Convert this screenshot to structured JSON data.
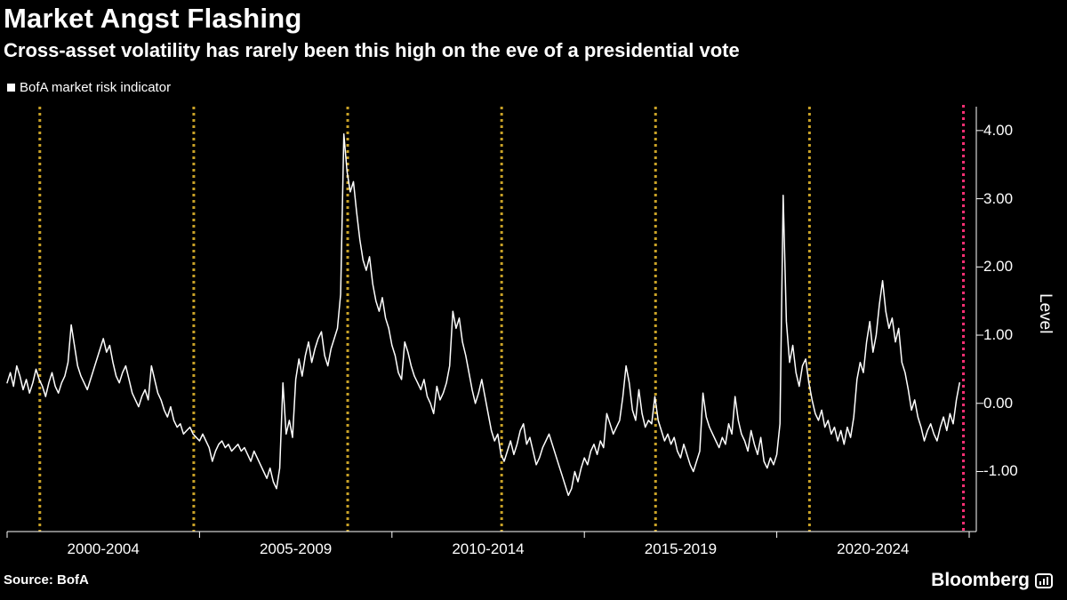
{
  "header": {
    "title": "Market Angst Flashing",
    "subtitle": "Cross-asset volatility has rarely been this high on the eve of a presidential vote"
  },
  "legend": {
    "label": "BofA market risk indicator",
    "marker_color": "#ffffff"
  },
  "footer": {
    "source": "Source: BofA",
    "brand": "Bloomberg"
  },
  "colors": {
    "background": "#000000",
    "text": "#ffffff",
    "axis": "#ffffff"
  },
  "chart_data": {
    "type": "line",
    "title": "Market Angst Flashing",
    "subtitle": "Cross-asset volatility has rarely been this high on the eve of a presidential vote",
    "ylabel": "Level",
    "xlim": [
      2000.0,
      2025.0
    ],
    "ylim": [
      -1.88,
      4.35
    ],
    "grid": false,
    "legend_position": "top-left",
    "y_ticks": [
      4.0,
      3.0,
      2.0,
      1.0,
      0.0,
      -1.0
    ],
    "y_tick_labels": [
      "4.00",
      "3.00",
      "2.00",
      "1.00",
      "0.00",
      "-1.00"
    ],
    "x_ticks": [
      2000,
      2005,
      2010,
      2015,
      2020,
      2025
    ],
    "x_period_labels": [
      "2000-2004",
      "2005-2009",
      "2010-2014",
      "2015-2019",
      "2020-2024"
    ],
    "event_lines": {
      "color": "#c9a227",
      "style": "dotted",
      "years": [
        2000.85,
        2004.85,
        2008.85,
        2012.85,
        2016.85,
        2020.85
      ]
    },
    "highlight_line": {
      "color": "#ff2e74",
      "style": "dotted",
      "year": 2024.85
    },
    "series": [
      {
        "name": "BofA market risk indicator",
        "color": "#ffffff",
        "x_start": 2000.0,
        "points_per_year": 12,
        "values": [
          0.3,
          0.45,
          0.25,
          0.55,
          0.4,
          0.2,
          0.35,
          0.15,
          0.3,
          0.5,
          0.35,
          0.25,
          0.1,
          0.3,
          0.45,
          0.25,
          0.15,
          0.3,
          0.4,
          0.6,
          1.15,
          0.85,
          0.55,
          0.4,
          0.3,
          0.2,
          0.35,
          0.5,
          0.65,
          0.8,
          0.95,
          0.75,
          0.85,
          0.6,
          0.4,
          0.3,
          0.45,
          0.55,
          0.35,
          0.15,
          0.05,
          -0.05,
          0.1,
          0.2,
          0.05,
          0.55,
          0.35,
          0.15,
          0.05,
          -0.1,
          -0.2,
          -0.05,
          -0.25,
          -0.35,
          -0.3,
          -0.45,
          -0.4,
          -0.35,
          -0.45,
          -0.5,
          -0.55,
          -0.45,
          -0.55,
          -0.65,
          -0.85,
          -0.7,
          -0.6,
          -0.55,
          -0.65,
          -0.6,
          -0.7,
          -0.65,
          -0.6,
          -0.7,
          -0.65,
          -0.75,
          -0.85,
          -0.7,
          -0.8,
          -0.9,
          -1.0,
          -1.1,
          -0.95,
          -1.15,
          -1.25,
          -0.95,
          0.3,
          -0.45,
          -0.25,
          -0.5,
          0.35,
          0.65,
          0.4,
          0.7,
          0.9,
          0.6,
          0.8,
          0.95,
          1.05,
          0.7,
          0.55,
          0.8,
          0.95,
          1.1,
          1.6,
          3.95,
          3.4,
          3.1,
          3.25,
          2.8,
          2.4,
          2.1,
          1.95,
          2.15,
          1.75,
          1.5,
          1.35,
          1.55,
          1.25,
          1.1,
          0.85,
          0.7,
          0.45,
          0.35,
          0.9,
          0.75,
          0.55,
          0.4,
          0.3,
          0.2,
          0.35,
          0.1,
          0.0,
          -0.15,
          0.25,
          0.05,
          0.15,
          0.3,
          0.55,
          1.35,
          1.1,
          1.25,
          0.9,
          0.7,
          0.45,
          0.2,
          0.0,
          0.15,
          0.35,
          0.1,
          -0.15,
          -0.4,
          -0.55,
          -0.45,
          -0.75,
          -0.85,
          -0.7,
          -0.55,
          -0.75,
          -0.6,
          -0.4,
          -0.3,
          -0.6,
          -0.5,
          -0.7,
          -0.9,
          -0.8,
          -0.65,
          -0.55,
          -0.45,
          -0.6,
          -0.75,
          -0.9,
          -1.05,
          -1.2,
          -1.35,
          -1.25,
          -1.0,
          -1.15,
          -0.95,
          -0.8,
          -0.9,
          -0.7,
          -0.6,
          -0.75,
          -0.55,
          -0.65,
          -0.15,
          -0.3,
          -0.45,
          -0.35,
          -0.25,
          0.1,
          0.55,
          0.3,
          -0.1,
          -0.25,
          0.2,
          -0.15,
          -0.35,
          -0.25,
          -0.3,
          0.1,
          -0.25,
          -0.4,
          -0.55,
          -0.45,
          -0.6,
          -0.5,
          -0.7,
          -0.8,
          -0.6,
          -0.75,
          -0.9,
          -1.0,
          -0.85,
          -0.7,
          0.15,
          -0.2,
          -0.35,
          -0.45,
          -0.55,
          -0.65,
          -0.5,
          -0.6,
          -0.3,
          -0.45,
          0.1,
          -0.25,
          -0.45,
          -0.55,
          -0.7,
          -0.4,
          -0.6,
          -0.75,
          -0.5,
          -0.85,
          -0.95,
          -0.8,
          -0.9,
          -0.75,
          -0.3,
          3.05,
          1.2,
          0.6,
          0.85,
          0.45,
          0.25,
          0.55,
          0.65,
          0.3,
          0.05,
          -0.15,
          -0.25,
          -0.1,
          -0.35,
          -0.25,
          -0.45,
          -0.35,
          -0.55,
          -0.4,
          -0.6,
          -0.35,
          -0.5,
          -0.2,
          0.35,
          0.6,
          0.45,
          0.9,
          1.2,
          0.75,
          1.0,
          1.45,
          1.8,
          1.35,
          1.1,
          1.25,
          0.9,
          1.1,
          0.6,
          0.45,
          0.2,
          -0.1,
          0.05,
          -0.2,
          -0.35,
          -0.55,
          -0.4,
          -0.3,
          -0.45,
          -0.55,
          -0.35,
          -0.2,
          -0.4,
          -0.15,
          -0.3,
          0.05,
          0.3
        ]
      }
    ]
  }
}
